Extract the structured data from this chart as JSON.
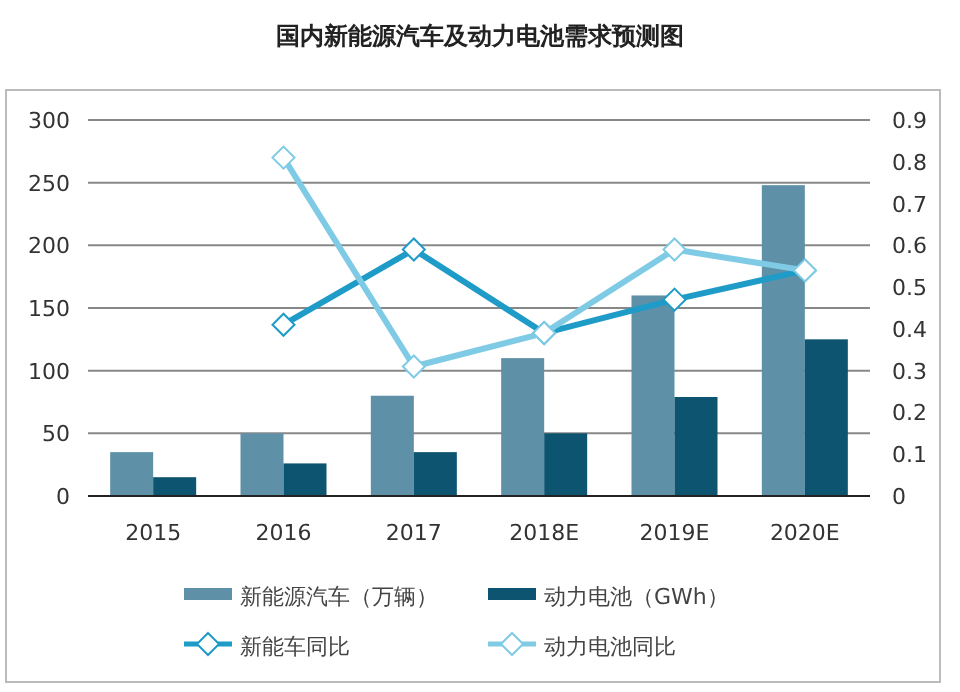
{
  "chart_data": {
    "type": "bar",
    "title": "国内新能源汽车及动力电池需求预测图",
    "categories": [
      "2015",
      "2016",
      "2017",
      "2018E",
      "2019E",
      "2020E"
    ],
    "series": [
      {
        "name": "新能源汽车（万辆）",
        "color": "#5e90a8",
        "values": [
          35,
          50,
          80,
          110,
          160,
          248
        ]
      },
      {
        "name": "动力电池（GWh）",
        "color": "#0d5470",
        "values": [
          15,
          26,
          35,
          50,
          79,
          125
        ]
      },
      {
        "name": "新能车同比",
        "type": "line",
        "axis": "y2",
        "color": "#1f9bc8",
        "values": [
          null,
          0.41,
          0.59,
          0.39,
          0.47,
          0.54
        ]
      },
      {
        "name": "动力电池同比",
        "type": "line",
        "axis": "y2",
        "color": "#7fcbe6",
        "values": [
          null,
          0.81,
          0.31,
          0.39,
          0.59,
          0.54
        ]
      }
    ],
    "ylim": [
      0,
      300
    ],
    "yticks": [
      0,
      50,
      100,
      150,
      200,
      250,
      300
    ],
    "y2lim": [
      0,
      0.9
    ],
    "y2ticks": [
      0,
      0.1,
      0.2,
      0.3,
      0.4,
      0.5,
      0.6,
      0.7,
      0.8,
      0.9
    ],
    "grid": "y",
    "legend": "bottom",
    "marker": "diamond",
    "line_style": "solid"
  }
}
